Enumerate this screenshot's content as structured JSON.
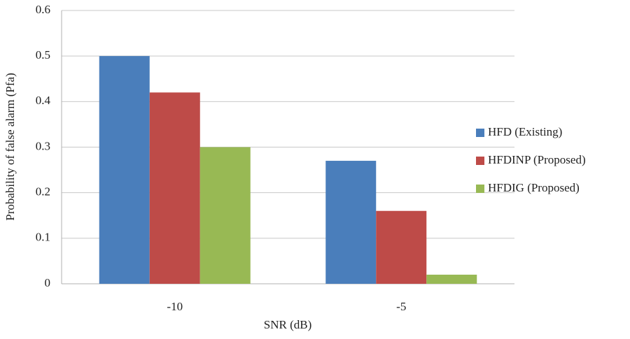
{
  "chart_data": {
    "type": "bar",
    "y_label": "Probability of false alarm (Pfa)",
    "x_label": "SNR (dB)",
    "categories": [
      "-10",
      "-5"
    ],
    "series": [
      {
        "name": "HFD (Existing)",
        "color": "#4a7ebb",
        "values": [
          0.5,
          0.27
        ]
      },
      {
        "name": "HFDINP (Proposed)",
        "color": "#be4b48",
        "values": [
          0.42,
          0.16
        ]
      },
      {
        "name": "HFDIG (Proposed)",
        "color": "#98b954",
        "values": [
          0.3,
          0.02
        ]
      }
    ],
    "ylim": [
      0,
      0.6
    ],
    "yticks": [
      0,
      0.1,
      0.2,
      0.3,
      0.4,
      0.5,
      0.6
    ],
    "grid": true,
    "legend": "right"
  }
}
